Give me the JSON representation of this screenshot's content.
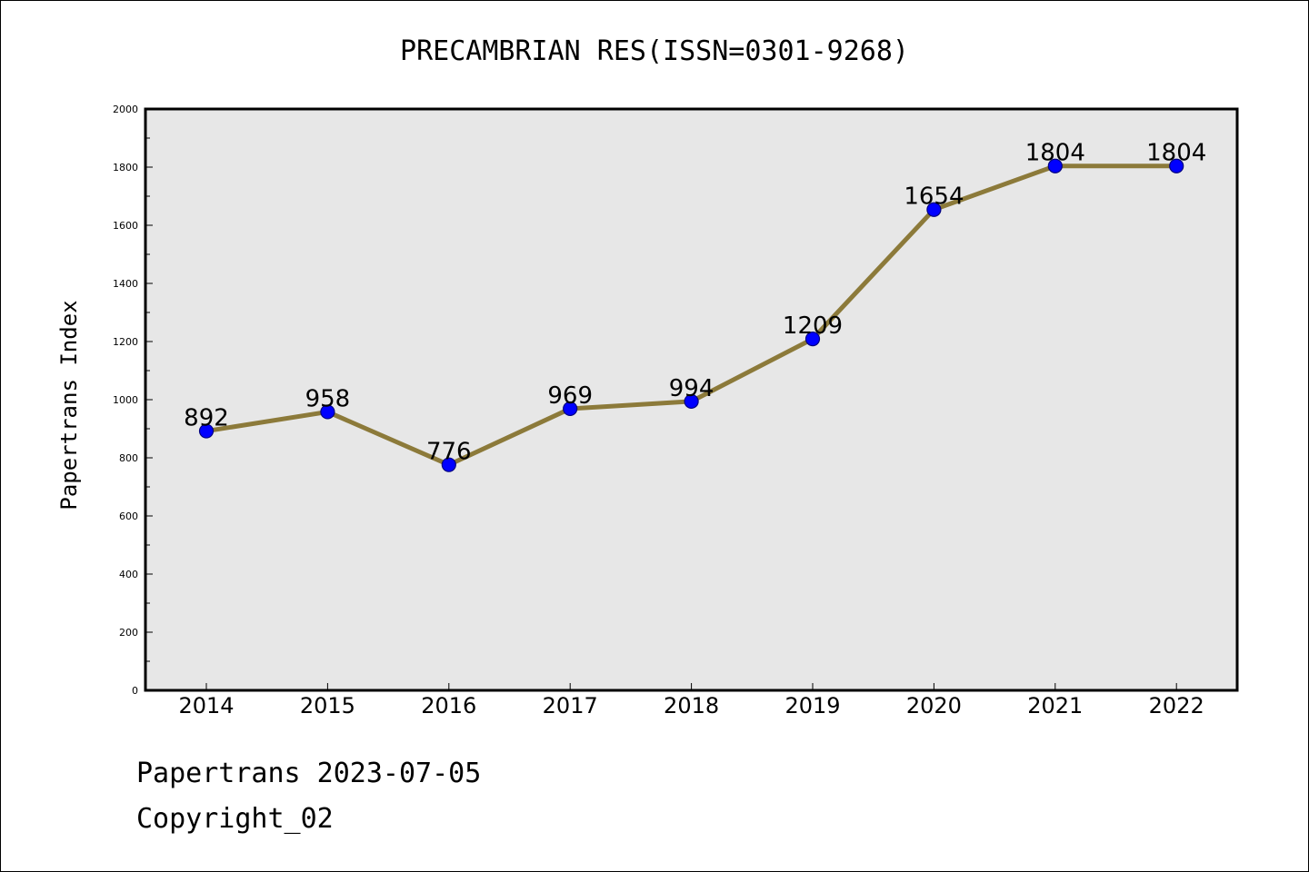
{
  "chart_data": {
    "type": "line",
    "title": "PRECAMBRIAN RES(ISSN=0301-9268)",
    "xlabel": "",
    "ylabel": "Papertrans Index",
    "categories": [
      "2014",
      "2015",
      "2016",
      "2017",
      "2018",
      "2019",
      "2020",
      "2021",
      "2022"
    ],
    "values": [
      892,
      958,
      776,
      969,
      994,
      1209,
      1654,
      1804,
      1804
    ],
    "data_labels": [
      "892",
      "958",
      "776",
      "969",
      "994",
      "1209",
      "1654",
      "1804",
      "1804"
    ],
    "ylim": [
      0,
      2000
    ],
    "yticks": [
      0,
      200,
      400,
      600,
      800,
      1000,
      1200,
      1400,
      1600,
      1800,
      2000
    ],
    "ytick_labels": [
      "0",
      "200",
      "400",
      "600",
      "800",
      "1000",
      "1200",
      "1400",
      "1600",
      "1800",
      "2000"
    ],
    "grid": false,
    "legend": "none",
    "colors": {
      "line": "#8c7a3a",
      "marker_fill": "#0000ff",
      "marker_stroke": "#000080",
      "plot_background": "#e7e7e7"
    }
  },
  "footer": {
    "line1": "Papertrans 2023-07-05",
    "line2": "Copyright_02"
  }
}
